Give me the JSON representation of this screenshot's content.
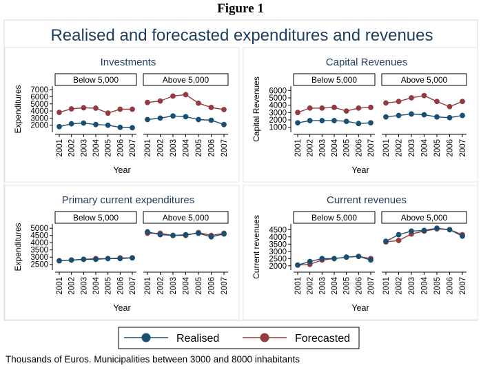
{
  "figure_label": "Figure 1",
  "footnote": "Thousands of Euros. Municipalities between 3000 and 8000 inhabitants",
  "colors": {
    "realised": "#1b4f72",
    "forecasted": "#943b3f",
    "title": "#1e3d5f",
    "strip_bg": "#ffffff",
    "panel_border": "#d9d9d9"
  },
  "chart_data": {
    "type": "line",
    "title": "Realised and forecasted expenditures and revenues",
    "legend": {
      "position": "bottom",
      "entries": [
        "Realised",
        "Forecasted"
      ]
    },
    "x": [
      "2001",
      "2002",
      "2003",
      "2004",
      "2005",
      "2006",
      "2007"
    ],
    "xlabel": "Year",
    "strip_labels": [
      "Below 5,000",
      "Above 5,000"
    ],
    "grid": false,
    "panels": [
      {
        "title": "Investments",
        "ylabel": "Expenditures",
        "yticks": [
          2000,
          3000,
          4000,
          5000,
          6000,
          7000
        ],
        "ylim": [
          1200,
          7300
        ],
        "facets": [
          {
            "label": "Below 5,000",
            "series": [
              {
                "name": "Realised",
                "values": [
                  1800,
                  2200,
                  2300,
                  2100,
                  2000,
                  1700,
                  1650
                ]
              },
              {
                "name": "Forecasted",
                "values": [
                  3800,
                  4300,
                  4450,
                  4400,
                  3700,
                  4250,
                  4250
                ]
              }
            ]
          },
          {
            "label": "Above 5,000",
            "series": [
              {
                "name": "Realised",
                "values": [
                  2800,
                  3000,
                  3300,
                  3200,
                  2800,
                  2700,
                  2100
                ]
              },
              {
                "name": "Forecasted",
                "values": [
                  5200,
                  5400,
                  6100,
                  6300,
                  5100,
                  4500,
                  4200
                ]
              }
            ]
          }
        ]
      },
      {
        "title": "Capital Revenues",
        "ylabel": "Capital Revenues",
        "yticks": [
          1000,
          2000,
          3000,
          4000,
          5000,
          6000
        ],
        "ylim": [
          500,
          6400
        ],
        "facets": [
          {
            "label": "Below 5,000",
            "series": [
              {
                "name": "Realised",
                "values": [
                  1600,
                  1900,
                  1900,
                  1900,
                  1800,
                  1500,
                  1600
                ]
              },
              {
                "name": "Forecasted",
                "values": [
                  3000,
                  3600,
                  3600,
                  3700,
                  3200,
                  3600,
                  3700
                ]
              }
            ]
          },
          {
            "label": "Above 5,000",
            "series": [
              {
                "name": "Realised",
                "values": [
                  2400,
                  2600,
                  2800,
                  2700,
                  2400,
                  2300,
                  2600
                ]
              },
              {
                "name": "Forecasted",
                "values": [
                  4300,
                  4500,
                  5000,
                  5300,
                  4500,
                  3800,
                  4500
                ]
              }
            ]
          }
        ]
      },
      {
        "title": "Primary current expenditures",
        "ylabel": "Expenditures",
        "yticks": [
          2500,
          3000,
          3500,
          4000,
          4500,
          5000
        ],
        "ylim": [
          2200,
          5200
        ],
        "facets": [
          {
            "label": "Below 5,000",
            "series": [
              {
                "name": "Realised",
                "values": [
                  2750,
                  2800,
                  2850,
                  2850,
                  2900,
                  2900,
                  2950
                ]
              },
              {
                "name": "Forecasted",
                "values": [
                  2750,
                  2800,
                  2850,
                  2900,
                  2900,
                  2950,
                  2950
                ]
              }
            ]
          },
          {
            "label": "Above 5,000",
            "series": [
              {
                "name": "Realised",
                "values": [
                  4750,
                  4550,
                  4500,
                  4550,
                  4650,
                  4400,
                  4600
                ]
              },
              {
                "name": "Forecasted",
                "values": [
                  4650,
                  4650,
                  4500,
                  4500,
                  4700,
                  4500,
                  4650
                ]
              }
            ]
          }
        ]
      },
      {
        "title": "Current revenues",
        "ylabel": "Current revenues",
        "yticks": [
          2000,
          2500,
          3000,
          3500,
          4000,
          4500
        ],
        "ylim": [
          1800,
          4800
        ],
        "facets": [
          {
            "label": "Below 5,000",
            "series": [
              {
                "name": "Realised",
                "values": [
                  2050,
                  2300,
                  2500,
                  2500,
                  2600,
                  2650,
                  2400
                ]
              },
              {
                "name": "Forecasted",
                "values": [
                  2050,
                  2100,
                  2400,
                  2500,
                  2600,
                  2650,
                  2500
                ]
              }
            ]
          },
          {
            "label": "Above 5,000",
            "series": [
              {
                "name": "Realised",
                "values": [
                  3700,
                  4150,
                  4400,
                  4450,
                  4600,
                  4500,
                  4050
                ]
              },
              {
                "name": "Forecasted",
                "values": [
                  3650,
                  3750,
                  4200,
                  4400,
                  4550,
                  4500,
                  4150
                ]
              }
            ]
          }
        ]
      }
    ]
  }
}
